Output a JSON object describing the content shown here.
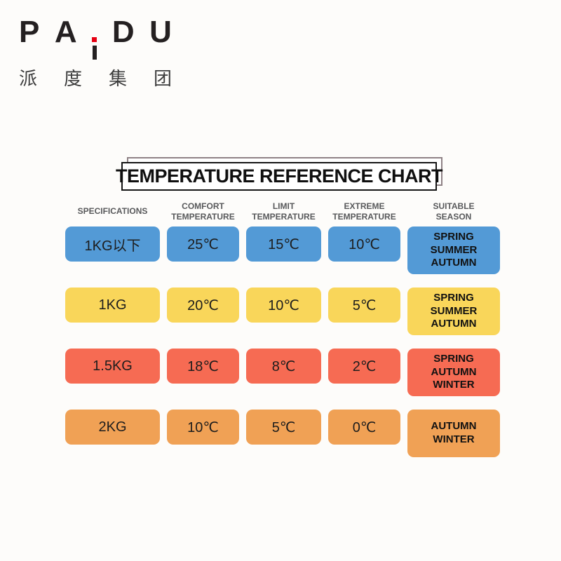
{
  "logo": {
    "letters": [
      "P",
      "A",
      "I",
      "D",
      "U"
    ],
    "dot_color": "#E60012",
    "cjk_chars": [
      "派",
      "度",
      "集",
      "团"
    ]
  },
  "chart_data": {
    "type": "table",
    "title": "TEMPERATURE REFERENCE CHART",
    "columns": [
      "SPECIFICATIONS",
      "COMFORT\nTEMPERATURE",
      "LIMIT\nTEMPERATURE",
      "EXTREME\nTEMPERATURE",
      "SUITABLE\nSEASON"
    ],
    "rows": [
      {
        "color": "#539AD6",
        "specification": "1KG以下",
        "comfort": "25℃",
        "limit": "15℃",
        "extreme": "10℃",
        "season": "SPRING\nSUMMER\nAUTUMN"
      },
      {
        "color": "#F9D65A",
        "specification": "1KG",
        "comfort": "20℃",
        "limit": "10℃",
        "extreme": "5℃",
        "season": "SPRING\nSUMMER\nAUTUMN"
      },
      {
        "color": "#F66B53",
        "specification": "1.5KG",
        "comfort": "18℃",
        "limit": "8℃",
        "extreme": "2℃",
        "season": "SPRING\nAUTUMN\nWINTER"
      },
      {
        "color": "#F0A155",
        "specification": "2KG",
        "comfort": "10℃",
        "limit": "5℃",
        "extreme": "0℃",
        "season": "AUTUMN\nWINTER"
      }
    ]
  }
}
